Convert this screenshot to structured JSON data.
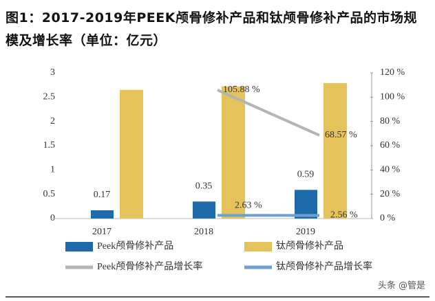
{
  "chart_data": {
    "type": "bar",
    "title": "图1：2017-2019年PEEK颅骨修补产品和钛颅骨修补产品的市场规模及增长率（单位：亿元）",
    "categories": [
      "2017",
      "2018",
      "2019"
    ],
    "series": [
      {
        "name": "Peek颅骨修补产品",
        "type": "bar",
        "color": "#1f6aa8",
        "values": [
          0.17,
          0.35,
          0.59
        ]
      },
      {
        "name": "钛颅骨修补产品",
        "type": "bar",
        "color": "#e5c35c",
        "values": [
          2.65,
          2.72,
          2.79
        ]
      },
      {
        "name": "Peek颅骨修补产品增长率",
        "type": "line",
        "axis": "y2",
        "color": "#b4b4b4",
        "values": [
          null,
          105.88,
          68.57
        ],
        "value_labels": [
          null,
          "105.88 %",
          "68.57 %"
        ]
      },
      {
        "name": "钛颅骨修补产品增长率",
        "type": "line",
        "axis": "y2",
        "color": "#6d9fcf",
        "values": [
          null,
          2.63,
          2.56
        ],
        "value_labels": [
          null,
          "2.63 %",
          "2.56 %"
        ]
      }
    ],
    "ylim": [
      0,
      3
    ],
    "yticks": [
      0,
      0.5,
      1,
      1.5,
      2,
      2.5,
      3
    ],
    "y2lim": [
      0,
      120
    ],
    "y2ticks": [
      {
        "value": 0,
        "label": "0 %"
      },
      {
        "value": 20,
        "label": "20 %"
      },
      {
        "value": 40,
        "label": "40 %"
      },
      {
        "value": 60,
        "label": "60 %"
      },
      {
        "value": 80,
        "label": "80 %"
      },
      {
        "value": 100,
        "label": "100 %"
      },
      {
        "value": 120,
        "label": "120 %"
      }
    ],
    "grid": false,
    "legend": "bottom"
  },
  "watermark": "头条 @管是"
}
